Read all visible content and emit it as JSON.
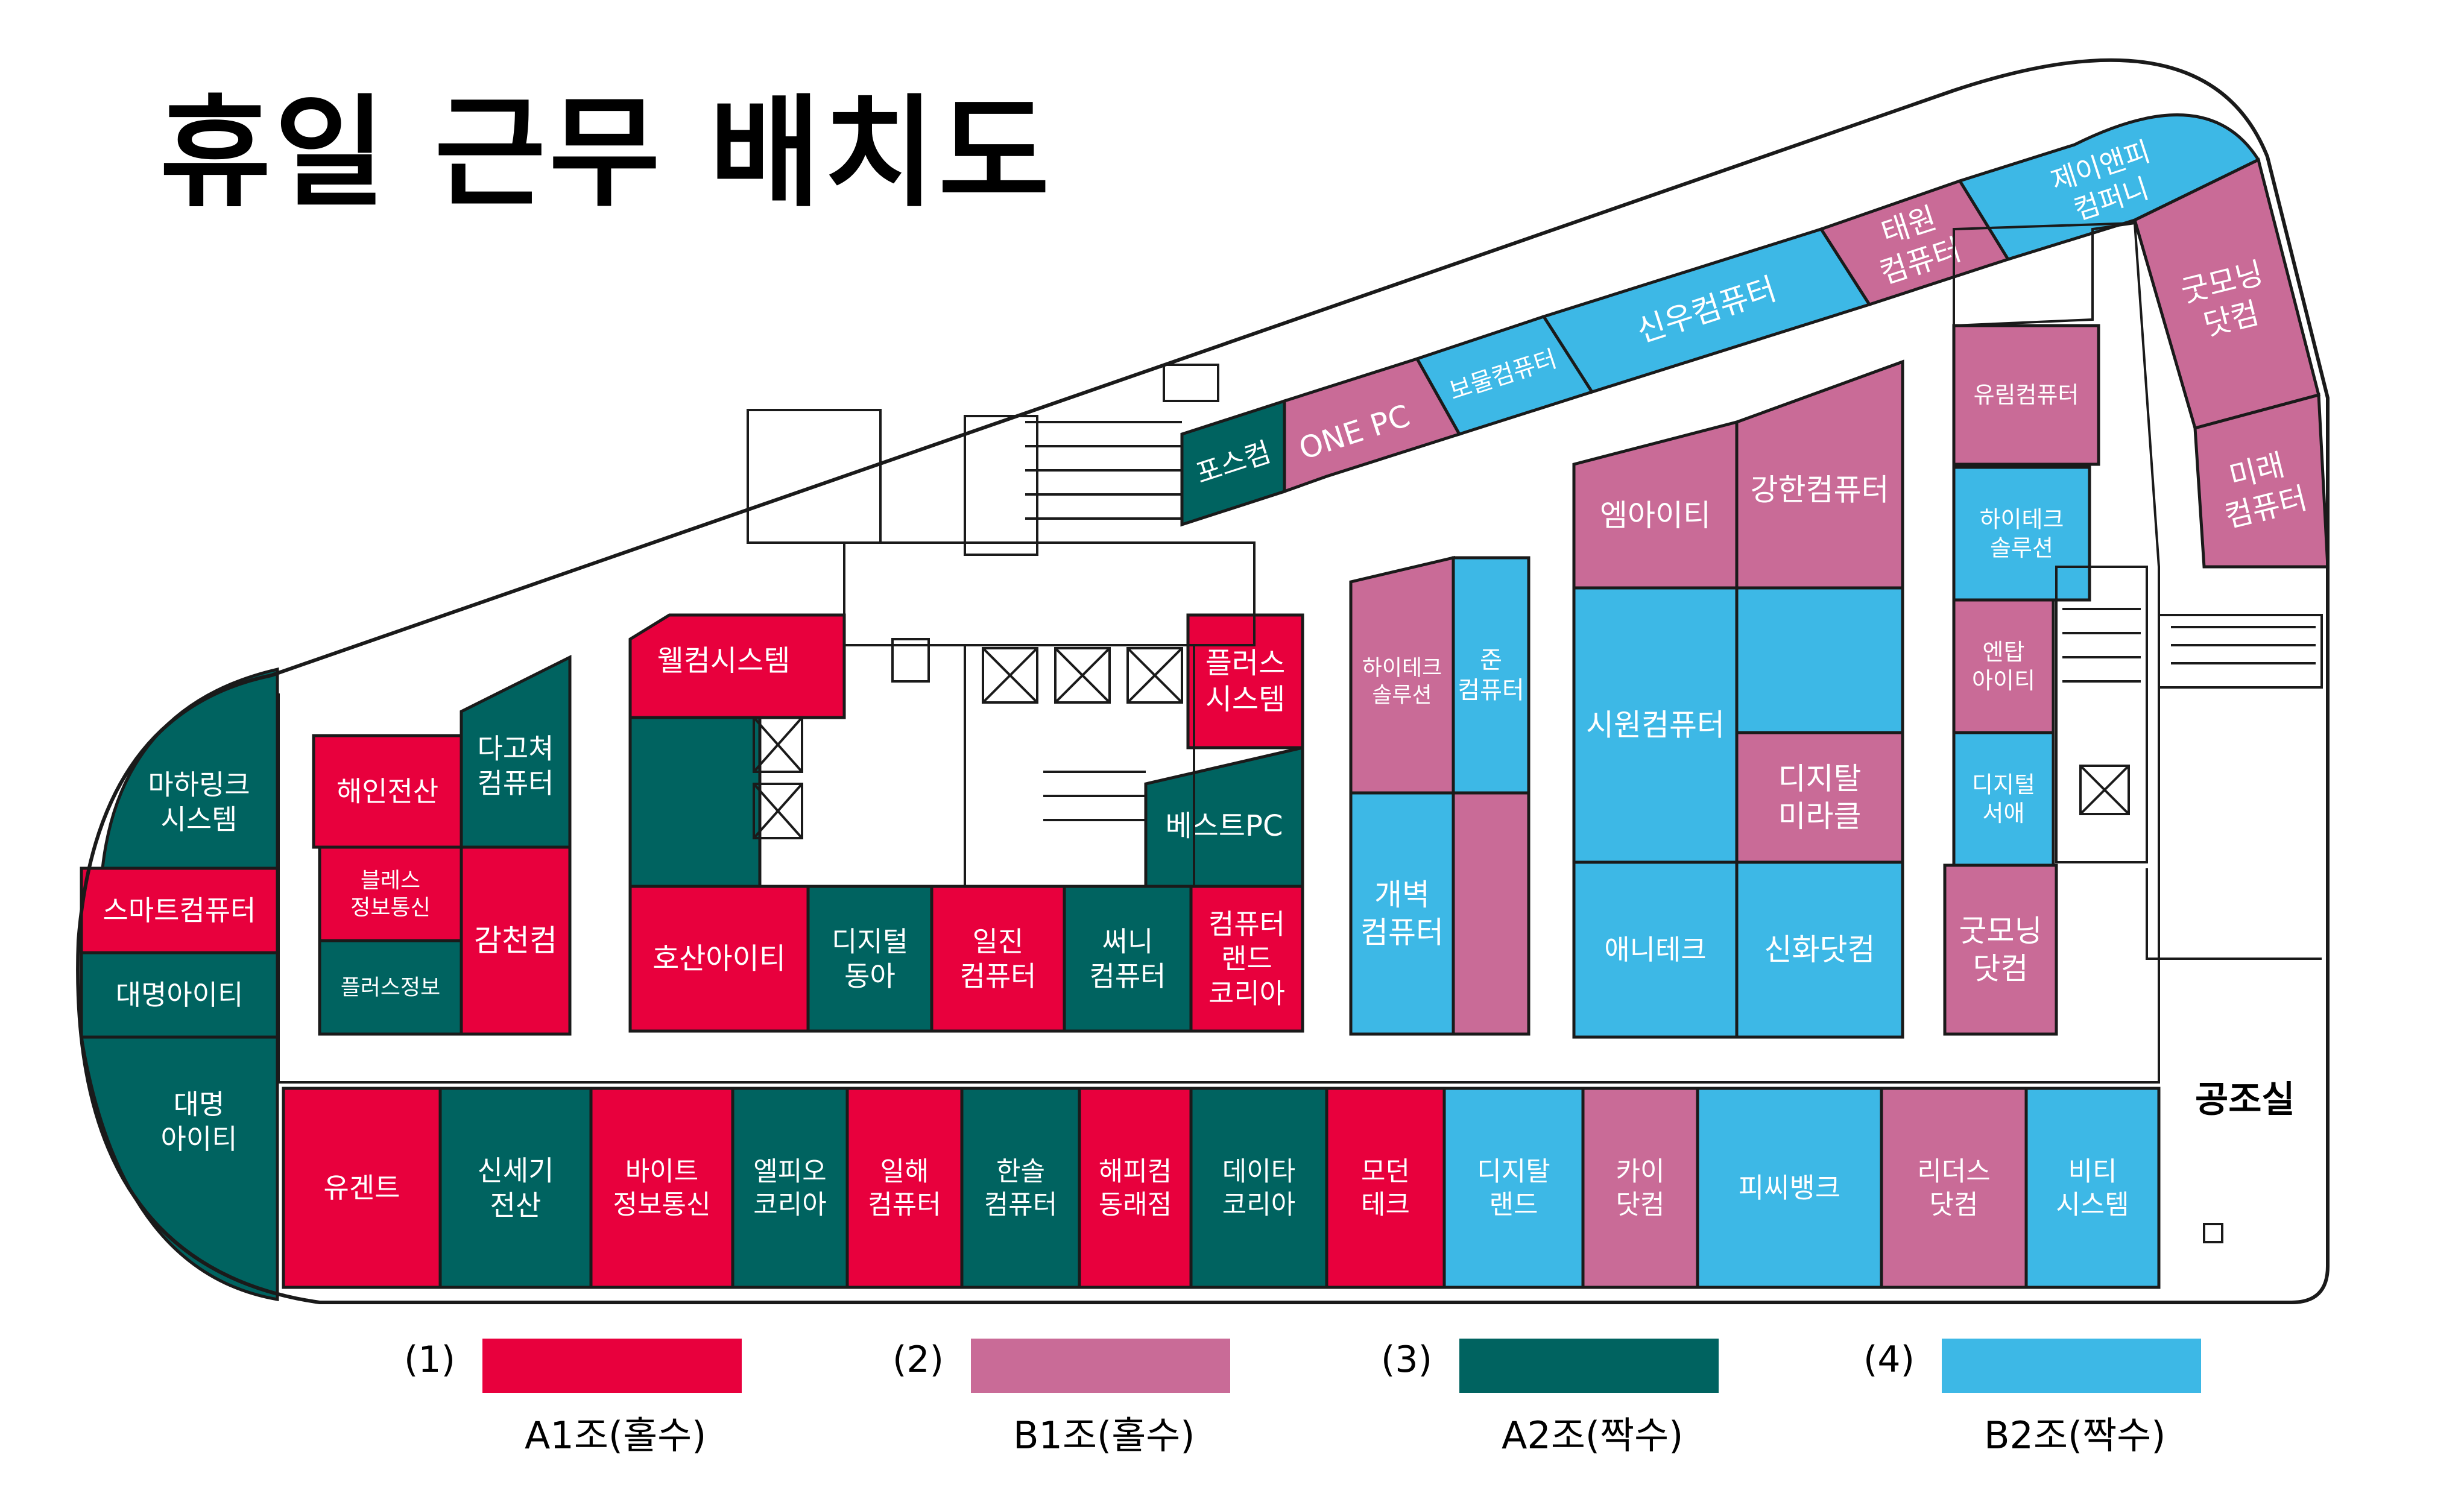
{
  "title": "휴일 근무 배치도",
  "colors": {
    "A1": "#e8003d",
    "B1": "#c96b97",
    "A2": "#006360",
    "B2": "#3db8e6",
    "text": "#ffffff"
  },
  "legend": [
    {
      "num": "(1)",
      "label": "A1조(홀수)",
      "group": "A1"
    },
    {
      "num": "(2)",
      "label": "B1조(홀수)",
      "group": "B1"
    },
    {
      "num": "(3)",
      "label": "A2조(짝수)",
      "group": "A2"
    },
    {
      "num": "(4)",
      "label": "B2조(짝수)",
      "group": "B2"
    }
  ],
  "facility": {
    "aircon_room": "공조실"
  },
  "stores": [
    {
      "id": "pos-com",
      "name": "포스컴",
      "group": "A2"
    },
    {
      "id": "one-pc",
      "name": "ONE PC",
      "group": "B1"
    },
    {
      "id": "bomul",
      "name": "보물컴퓨터",
      "group": "B2"
    },
    {
      "id": "sinwoo",
      "name": "신우컴퓨터",
      "group": "B2"
    },
    {
      "id": "taewon",
      "name": "태원\n컴퓨터",
      "group": "B1"
    },
    {
      "id": "jayanpi",
      "name": "제이앤피\n컴퍼니",
      "group": "B2"
    },
    {
      "id": "goodmorning-1",
      "name": "굿모닝\n닷컴",
      "group": "B1"
    },
    {
      "id": "mirae",
      "name": "미래\n컴퓨터",
      "group": "B1"
    },
    {
      "id": "yurim",
      "name": "유림컴퓨터",
      "group": "B1"
    },
    {
      "id": "hitech-1",
      "name": "하이테크\n솔루션",
      "group": "B2"
    },
    {
      "id": "entap",
      "name": "엔탑\n아이티",
      "group": "B1"
    },
    {
      "id": "digital-seoae",
      "name": "디지털\n서애",
      "group": "B2"
    },
    {
      "id": "goodmorning-2",
      "name": "굿모닝\n닷컴",
      "group": "B1"
    },
    {
      "id": "emiti",
      "name": "엠아이티",
      "group": "B1"
    },
    {
      "id": "ganghan",
      "name": "강한컴퓨터",
      "group": "B1"
    },
    {
      "id": "siwon",
      "name": "시원컴퓨터",
      "group": "B2"
    },
    {
      "id": "blank-b2",
      "name": "",
      "group": "B2"
    },
    {
      "id": "digital-miracle",
      "name": "디지탈\n미라클",
      "group": "B1"
    },
    {
      "id": "anitech",
      "name": "애니테크",
      "group": "B2"
    },
    {
      "id": "sinhwa",
      "name": "신화닷컴",
      "group": "B2"
    },
    {
      "id": "hitech-2",
      "name": "하이테크\n솔루션",
      "group": "B1"
    },
    {
      "id": "jun",
      "name": "준\n컴퓨터",
      "group": "B2"
    },
    {
      "id": "gaebyeok",
      "name": "개벽\n컴퓨터",
      "group": "B2"
    },
    {
      "id": "blank-b1",
      "name": "",
      "group": "B1"
    },
    {
      "id": "welcome",
      "name": "웰컴시스템",
      "group": "A1"
    },
    {
      "id": "plus-system",
      "name": "플러스\n시스템",
      "group": "A1"
    },
    {
      "id": "blank-a2",
      "name": "",
      "group": "A2"
    },
    {
      "id": "best-pc",
      "name": "베스트PC",
      "group": "A2"
    },
    {
      "id": "hosan",
      "name": "호산아이티",
      "group": "A1"
    },
    {
      "id": "digital-donga",
      "name": "디지털\n동아",
      "group": "A2"
    },
    {
      "id": "iljin",
      "name": "일진\n컴퓨터",
      "group": "A1"
    },
    {
      "id": "sseoni",
      "name": "써니\n컴퓨터",
      "group": "A2"
    },
    {
      "id": "computerland",
      "name": "컴퓨터\n랜드\n코리아",
      "group": "A1"
    },
    {
      "id": "haein",
      "name": "해인전산",
      "group": "A1"
    },
    {
      "id": "dagochyeo",
      "name": "다고쳐\n컴퓨터",
      "group": "A2"
    },
    {
      "id": "bless",
      "name": "블레스\n정보통신",
      "group": "A1"
    },
    {
      "id": "gamcheon",
      "name": "감천컴",
      "group": "A1"
    },
    {
      "id": "plus-info",
      "name": "플러스정보",
      "group": "A2"
    },
    {
      "id": "mahalink",
      "name": "마하링크\n시스템",
      "group": "A2"
    },
    {
      "id": "smart",
      "name": "스마트컴퓨터",
      "group": "A1"
    },
    {
      "id": "daemyung-1",
      "name": "대명아이티",
      "group": "A2"
    },
    {
      "id": "daemyung-2",
      "name": "대명\n아이티",
      "group": "A2"
    },
    {
      "id": "yugent",
      "name": "유겐트",
      "group": "A1"
    },
    {
      "id": "sinsegi",
      "name": "신세기\n전산",
      "group": "A2"
    },
    {
      "id": "byte",
      "name": "바이트\n정보통신",
      "group": "A1"
    },
    {
      "id": "elpio",
      "name": "엘피오\n코리아",
      "group": "A2"
    },
    {
      "id": "ilhae",
      "name": "일해\n컴퓨터",
      "group": "A1"
    },
    {
      "id": "hansol",
      "name": "한솔\n컴퓨터",
      "group": "A2"
    },
    {
      "id": "happycom",
      "name": "해피컴\n동래점",
      "group": "A1"
    },
    {
      "id": "data-korea",
      "name": "데이타\n코리아",
      "group": "A2"
    },
    {
      "id": "modern",
      "name": "모던\n테크",
      "group": "A1"
    },
    {
      "id": "digital-land",
      "name": "디지탈\n랜드",
      "group": "B2"
    },
    {
      "id": "kai",
      "name": "카이\n닷컴",
      "group": "B1"
    },
    {
      "id": "pc-bank",
      "name": "피씨뱅크",
      "group": "B2"
    },
    {
      "id": "leaders",
      "name": "리더스\n닷컴",
      "group": "B1"
    },
    {
      "id": "bitti",
      "name": "비티\n시스템",
      "group": "B2"
    }
  ]
}
